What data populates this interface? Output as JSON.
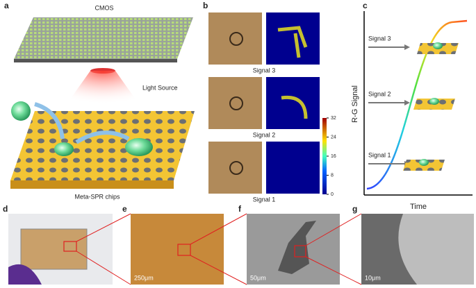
{
  "panels": {
    "letters": [
      "a",
      "b",
      "c",
      "d",
      "e",
      "f",
      "g"
    ]
  },
  "panel_a": {
    "cmos": "CMOS",
    "light": "Light Source",
    "chip": "Meta-SPR chips"
  },
  "panel_b": {
    "signals": [
      "Signal 3",
      "Signal 2",
      "Signal 1"
    ],
    "colorbar": {
      "clim": [
        0,
        32
      ],
      "ticks": [
        0,
        8,
        16,
        24,
        32
      ]
    }
  },
  "panel_c": {
    "y_label": "R-G Signal",
    "x_label": "Time",
    "signals": [
      "Signal 3",
      "Signal 2",
      "Signal 1"
    ]
  },
  "scale_bars": {
    "e": "250μm",
    "f": "50μm",
    "g": "10μm"
  }
}
